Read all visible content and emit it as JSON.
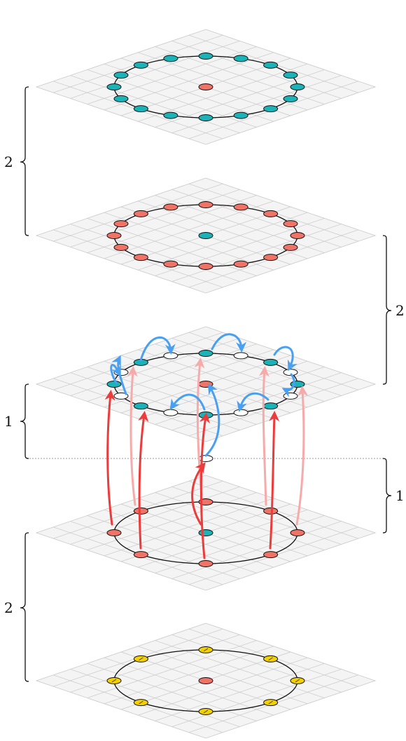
{
  "colors": {
    "background": "#ffffff",
    "grid_fill": "#f4f4f4",
    "grid_line": "#c8c8c8",
    "ring": "#111111",
    "salmon_node": "#f07368",
    "teal_node": "#1cb3b8",
    "yellow_node": "#f4d000",
    "white_node": "#ffffff",
    "red_arrow": "#ec3b3b",
    "red_arrow_faded": "#f7aaaa",
    "blue_arrow": "#4aa0f0",
    "divider": "#9a9a9a"
  },
  "layers": [
    {
      "id": "top",
      "center": "salmon",
      "ring": "teal",
      "ring_count": 16
    },
    {
      "id": "second",
      "center": "teal",
      "ring": "salmon",
      "ring_count": 16
    },
    {
      "id": "middle",
      "center": "salmon",
      "ring_pattern": "teal-white",
      "ring_count": 16
    },
    {
      "id": "fourth",
      "center": "teal",
      "ring": "salmon",
      "ring_count": 8
    },
    {
      "id": "bottom",
      "center": "salmon",
      "ring": "yellow",
      "ring_count": 8,
      "ring_marks": "diagonal"
    }
  ],
  "brackets": [
    {
      "id": "top-left",
      "side": "left",
      "label": "2"
    },
    {
      "id": "middle-right",
      "side": "right",
      "label": "2"
    },
    {
      "id": "middle-left",
      "side": "left",
      "label": "1"
    },
    {
      "id": "lower-right",
      "side": "right",
      "label": "1"
    },
    {
      "id": "bottom-left",
      "side": "left",
      "label": "2"
    }
  ]
}
